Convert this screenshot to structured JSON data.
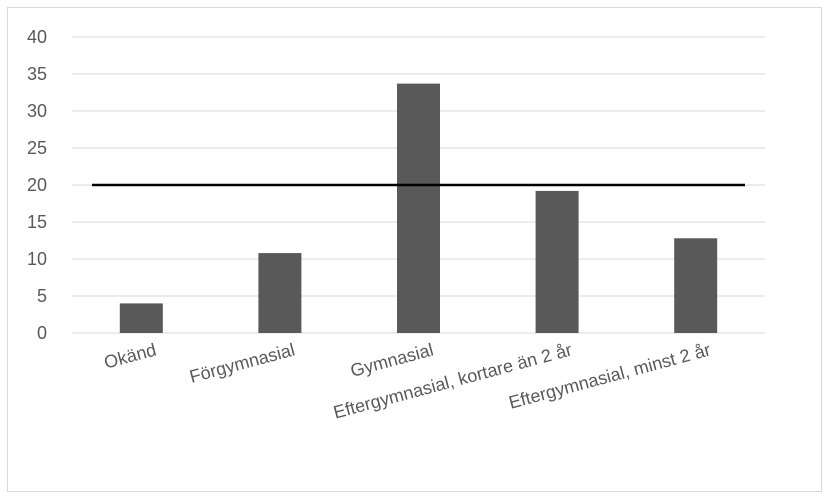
{
  "chart_data": {
    "type": "bar",
    "categories": [
      "Okänd",
      "Förgymnasial",
      "Gymnasial",
      "Eftergymnasial, kortare än 2 år",
      "Eftergymnasial, minst 2 år"
    ],
    "values": [
      4.0,
      10.8,
      33.7,
      19.2,
      12.8
    ],
    "reference_line": 20,
    "ylim": [
      0,
      40
    ],
    "yticks": [
      0,
      5,
      10,
      15,
      20,
      25,
      30,
      35,
      40
    ],
    "grid": true,
    "colors": {
      "bar": "#595959",
      "reference_line": "#000000",
      "grid": "#d9d9d9"
    }
  }
}
